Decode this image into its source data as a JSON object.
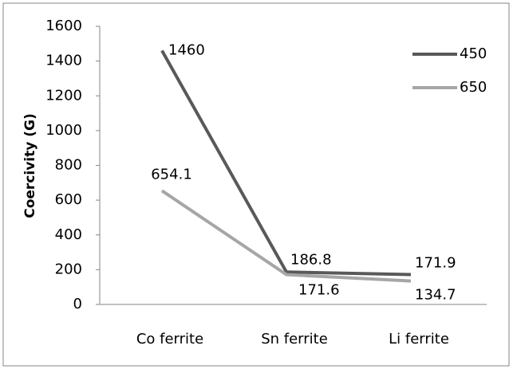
{
  "chart_data": {
    "type": "line",
    "y_label": "Coercivity (G)",
    "categories": [
      "Co ferrite",
      "Sn ferrite",
      "Li ferrite"
    ],
    "series": [
      {
        "name": "450",
        "color": "#595959",
        "values": [
          1460,
          186.8,
          171.9
        ]
      },
      {
        "name": "650",
        "color": "#a6a6a6",
        "values": [
          654.1,
          171.6,
          134.7
        ]
      }
    ],
    "ylim": [
      0,
      1600
    ],
    "yticks": [
      0,
      200,
      400,
      600,
      800,
      1000,
      1200,
      1400,
      1600
    ],
    "grid": false,
    "legend": "upper right",
    "data_labels": true
  }
}
